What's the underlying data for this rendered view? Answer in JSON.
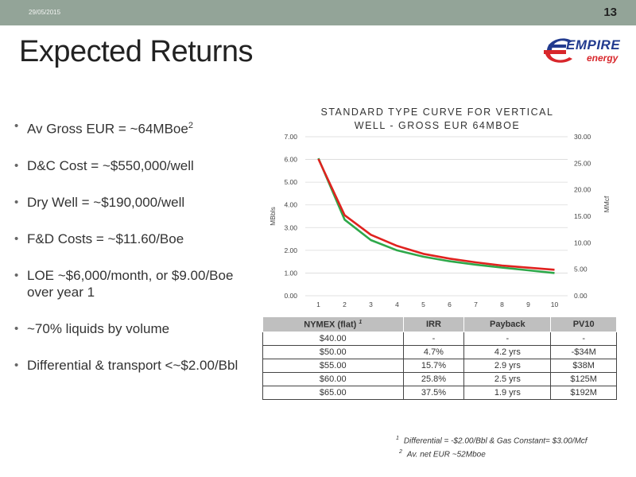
{
  "header": {
    "date": "29/05/2015",
    "page_number": "13"
  },
  "title": "Expected Returns",
  "logo": {
    "word1": "EMPIRE",
    "word2": "energy",
    "colors": {
      "blue": "#223b8f",
      "red": "#d8262b"
    }
  },
  "bullets": [
    {
      "text": "Av Gross EUR = ~64MBoe",
      "sup": "2"
    },
    {
      "text": "D&C Cost = ~$550,000/well"
    },
    {
      "text": "Dry Well = ~$190,000/well"
    },
    {
      "text": "F&D Costs = ~$11.60/Boe"
    },
    {
      "text": "LOE ~$6,000/month, or $9.00/Boe over year 1"
    },
    {
      "text": "~70% liquids by volume"
    },
    {
      "text": "Differential & transport <~$2.00/Bbl"
    }
  ],
  "chart_data": {
    "type": "line",
    "title": "STANDARD TYPE CURVE FOR VERTICAL WELL -  GROSS EUR 64MBOE",
    "ylabel": "MBbls",
    "y2label": "MMcf",
    "x": [
      1,
      2,
      3,
      4,
      5,
      6,
      7,
      8,
      9,
      10
    ],
    "ylim": [
      0,
      7
    ],
    "y2lim": [
      0,
      30
    ],
    "yticks": [
      "0.00",
      "1.00",
      "2.00",
      "3.00",
      "4.00",
      "5.00",
      "6.00",
      "7.00"
    ],
    "y2ticks": [
      "0.00",
      "5.00",
      "10.00",
      "15.00",
      "20.00",
      "25.00",
      "30.00"
    ],
    "grid": true,
    "series": [
      {
        "color": "#2ea84a",
        "axis": "left",
        "values": [
          6.05,
          3.35,
          2.45,
          2.0,
          1.72,
          1.52,
          1.37,
          1.24,
          1.12,
          1.0
        ]
      },
      {
        "color": "#e0221f",
        "axis": "right",
        "values": [
          25.8,
          15.2,
          11.5,
          9.4,
          7.9,
          7.0,
          6.3,
          5.7,
          5.3,
          4.9
        ]
      }
    ]
  },
  "table": {
    "headers": [
      "NYMEX (flat) ",
      "IRR",
      "Payback",
      "PV10"
    ],
    "header_sup": "1",
    "rows": [
      [
        "$40.00",
        "-",
        "-",
        "-"
      ],
      [
        "$50.00",
        "4.7%",
        "4.2 yrs",
        "-$34M"
      ],
      [
        "$55.00",
        "15.7%",
        "2.9 yrs",
        "$38M"
      ],
      [
        "$60.00",
        "25.8%",
        "2.5 yrs",
        "$125M"
      ],
      [
        "$65.00",
        "37.5%",
        "1.9 yrs",
        "$192M"
      ]
    ]
  },
  "footnotes": [
    {
      "num": "1",
      "text": "Differential = -$2.00/Bbl & Gas Constant= $3.00/Mcf"
    },
    {
      "num": "2",
      "text": "Av. net EUR ~52Mboe"
    }
  ]
}
